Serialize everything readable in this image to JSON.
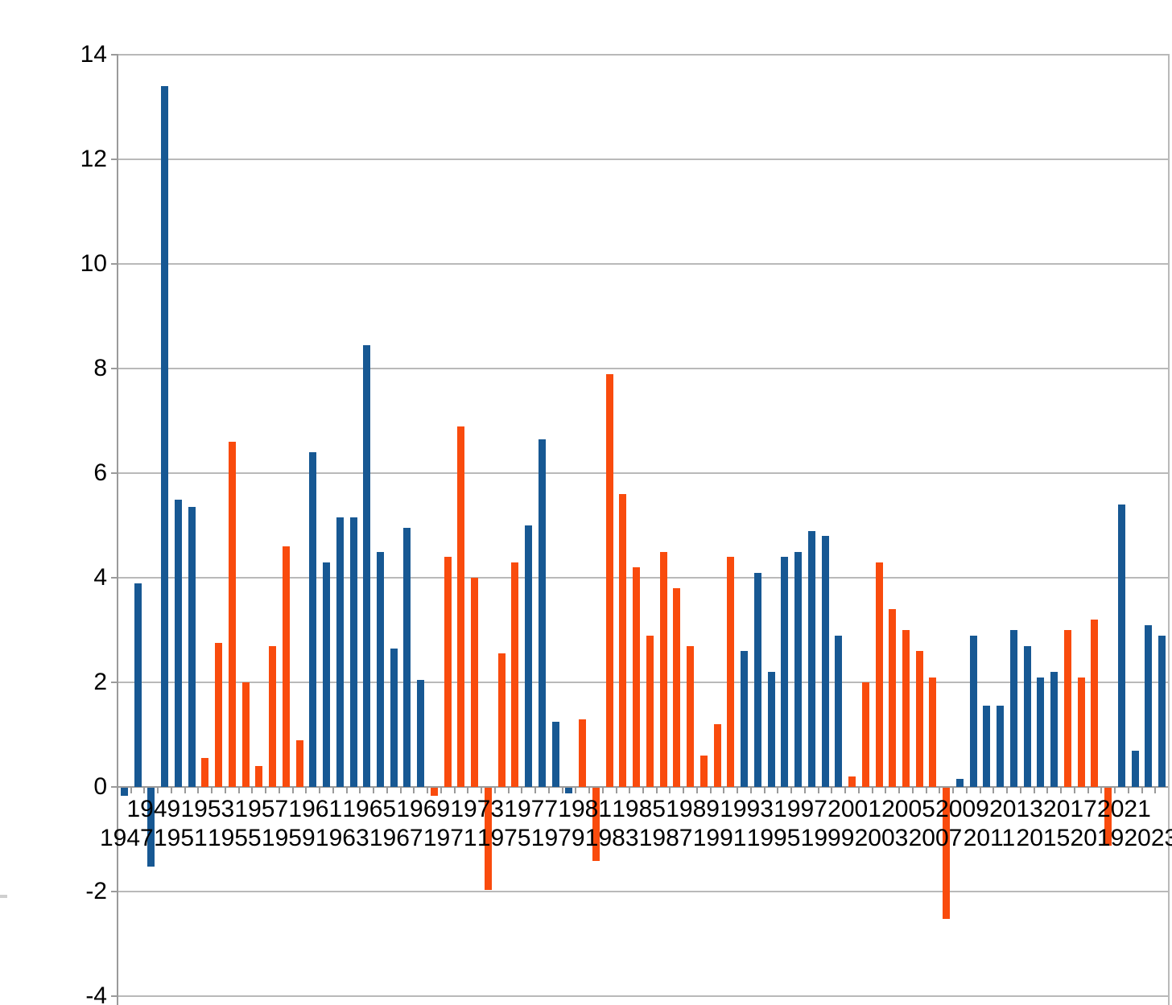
{
  "chart_data": {
    "type": "bar",
    "title": "",
    "legend": "none",
    "grid": "horizontal",
    "ylim": [
      -4,
      14
    ],
    "y_tick_values": [
      14,
      12,
      10,
      8,
      6,
      4,
      2,
      0,
      -2,
      -4
    ],
    "y_tick_labels": [
      "14",
      "12",
      "10",
      "8",
      "6",
      "4",
      "2",
      "0",
      "-2",
      "-4"
    ],
    "categories": [
      "1947",
      "1948",
      "1949",
      "1950",
      "1951",
      "1952",
      "1953",
      "1954",
      "1955",
      "1956",
      "1957",
      "1958",
      "1959",
      "1960",
      "1961",
      "1962",
      "1963",
      "1964",
      "1965",
      "1966",
      "1967",
      "1968",
      "1969",
      "1970",
      "1971",
      "1972",
      "1973",
      "1974",
      "1975",
      "1976",
      "1977",
      "1978",
      "1979",
      "1980",
      "1981",
      "1982",
      "1983",
      "1984",
      "1985",
      "1986",
      "1987",
      "1988",
      "1989",
      "1990",
      "1991",
      "1992",
      "1993",
      "1994",
      "1995",
      "1996",
      "1997",
      "1998",
      "1999",
      "2000",
      "2001",
      "2002",
      "2003",
      "2004",
      "2005",
      "2006",
      "2007",
      "2008",
      "2009",
      "2010",
      "2011",
      "2012",
      "2013",
      "2014",
      "2015",
      "2016",
      "2017",
      "2018",
      "2019",
      "2020",
      "2021",
      "2022",
      "2023",
      "2024"
    ],
    "values": [
      -0.15,
      3.9,
      -1.5,
      13.4,
      5.5,
      5.35,
      0.55,
      2.75,
      6.6,
      2.0,
      0.4,
      2.7,
      4.6,
      0.9,
      6.4,
      4.3,
      5.15,
      5.15,
      8.45,
      4.5,
      2.65,
      4.95,
      2.05,
      -0.15,
      4.4,
      6.9,
      4.0,
      -1.95,
      2.55,
      4.3,
      5.0,
      6.65,
      1.25,
      -0.1,
      1.3,
      -1.4,
      7.9,
      5.6,
      4.2,
      2.9,
      4.5,
      3.8,
      2.7,
      0.6,
      1.2,
      4.4,
      2.6,
      4.1,
      2.2,
      4.4,
      4.5,
      4.9,
      4.8,
      2.9,
      0.2,
      2.0,
      4.3,
      3.4,
      3.0,
      2.6,
      2.1,
      -2.5,
      0.15,
      2.9,
      1.55,
      1.55,
      3.0,
      2.7,
      2.1,
      2.2,
      3.0,
      2.1,
      3.2,
      -1.1,
      5.4,
      0.7,
      3.1,
      2.9
    ],
    "bar_color_keys": [
      "blue",
      "blue",
      "blue",
      "blue",
      "blue",
      "blue",
      "orange",
      "orange",
      "orange",
      "orange",
      "orange",
      "orange",
      "orange",
      "orange",
      "blue",
      "blue",
      "blue",
      "blue",
      "blue",
      "blue",
      "blue",
      "blue",
      "blue",
      "orange",
      "orange",
      "orange",
      "orange",
      "orange",
      "orange",
      "orange",
      "blue",
      "blue",
      "blue",
      "blue",
      "orange",
      "orange",
      "orange",
      "orange",
      "orange",
      "orange",
      "orange",
      "orange",
      "orange",
      "orange",
      "orange",
      "orange",
      "blue",
      "blue",
      "blue",
      "blue",
      "blue",
      "blue",
      "blue",
      "blue",
      "orange",
      "orange",
      "orange",
      "orange",
      "orange",
      "orange",
      "orange",
      "orange",
      "blue",
      "blue",
      "blue",
      "blue",
      "blue",
      "blue",
      "blue",
      "blue",
      "orange",
      "orange",
      "orange",
      "orange",
      "blue",
      "blue",
      "blue",
      "blue"
    ],
    "colors": {
      "blue": "#175893",
      "orange": "#F94B0D",
      "gridline_gray": "#b9b9b9",
      "axis_gray": "#9a9a9a",
      "text": "#000000",
      "background": "#ffffff"
    },
    "x_tick_label_rows": {
      "upper": [
        "1949",
        "1953",
        "1957",
        "1961",
        "1965",
        "1969",
        "1973",
        "1977",
        "1981",
        "1985",
        "1989",
        "1993",
        "1997",
        "2001",
        "2005",
        "2009",
        "2013",
        "2017",
        "2021"
      ],
      "lower": [
        "1947",
        "1951",
        "1955",
        "1959",
        "1963",
        "1967",
        "1971",
        "1975",
        "1979",
        "1983",
        "1987",
        "1991",
        "1995",
        "1999",
        "2003",
        "2007",
        "2011",
        "2015",
        "2019",
        "2023"
      ]
    }
  }
}
